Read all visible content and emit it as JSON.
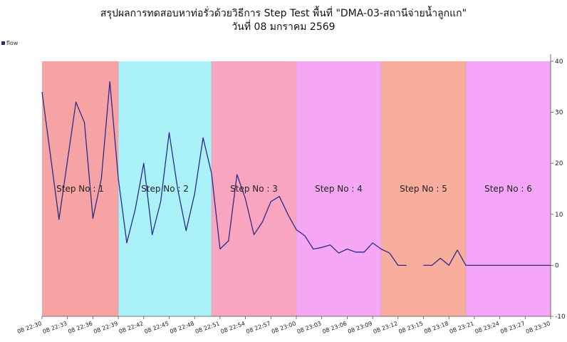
{
  "chart_data": {
    "type": "line",
    "title": "สรุปผลการทดสอบหาท่อรั่วด้วยวิธีการ Step Test พื้นที่ \"DMA-03-สถานีจ่ายน้ำลูกแก\"",
    "subtitle": "วันที่ 08 มกราคม 2569",
    "ylim": [
      -10,
      40
    ],
    "yticks": [
      -10,
      0,
      10,
      20,
      30,
      40
    ],
    "y_axis_side": "right",
    "x_start_minute": 0,
    "x_end_minute": 60,
    "xticks": [
      {
        "minute": 0,
        "label": "08 22:30"
      },
      {
        "minute": 3,
        "label": "08 22:33"
      },
      {
        "minute": 6,
        "label": "08 22:36"
      },
      {
        "minute": 9,
        "label": "08 22:39"
      },
      {
        "minute": 12,
        "label": "08 22:42"
      },
      {
        "minute": 15,
        "label": "08 22:45"
      },
      {
        "minute": 18,
        "label": "08 22:48"
      },
      {
        "minute": 21,
        "label": "08 22:51"
      },
      {
        "minute": 24,
        "label": "08 22:54"
      },
      {
        "minute": 27,
        "label": "08 22:57"
      },
      {
        "minute": 30,
        "label": "08 23:00"
      },
      {
        "minute": 33,
        "label": "08 23:03"
      },
      {
        "minute": 36,
        "label": "08 23:06"
      },
      {
        "minute": 39,
        "label": "08 23:09"
      },
      {
        "minute": 42,
        "label": "08 23:12"
      },
      {
        "minute": 45,
        "label": "08 23:15"
      },
      {
        "minute": 48,
        "label": "08 23:18"
      },
      {
        "minute": 51,
        "label": "08 23:21"
      },
      {
        "minute": 54,
        "label": "08 23:24"
      },
      {
        "minute": 57,
        "label": "08 23:27"
      },
      {
        "minute": 60,
        "label": "08 23:30"
      }
    ],
    "steps": [
      {
        "label": "Step No : 1",
        "start": 0,
        "end": 9,
        "color": "#f8a3a3"
      },
      {
        "label": "Step No : 2",
        "start": 9,
        "end": 20,
        "color": "#aaf1f8"
      },
      {
        "label": "Step No : 3",
        "start": 20,
        "end": 30,
        "color": "#f9a5c0"
      },
      {
        "label": "Step No : 4",
        "start": 30,
        "end": 40,
        "color": "#f5a6f5"
      },
      {
        "label": "Step No : 5",
        "start": 40,
        "end": 50,
        "color": "#f9ad9d"
      },
      {
        "label": "Step No : 6",
        "start": 50,
        "end": 60,
        "color": "#f5a6f8"
      }
    ],
    "series": [
      {
        "name": "flow",
        "color": "#2b2b8c",
        "points": [
          [
            0,
            34
          ],
          [
            2,
            9
          ],
          [
            4,
            32
          ],
          [
            5,
            28
          ],
          [
            6,
            9.2
          ],
          [
            7,
            17
          ],
          [
            8,
            36
          ],
          [
            9,
            17
          ],
          [
            10,
            4.4
          ],
          [
            11,
            11
          ],
          [
            12,
            20
          ],
          [
            13,
            6
          ],
          [
            14,
            12.5
          ],
          [
            15,
            26
          ],
          [
            16,
            15
          ],
          [
            17,
            6.8
          ],
          [
            18,
            14
          ],
          [
            19,
            25
          ],
          [
            20,
            18
          ],
          [
            21,
            3.2
          ],
          [
            22,
            4.8
          ],
          [
            23,
            17.8
          ],
          [
            24,
            13
          ],
          [
            25,
            6
          ],
          [
            26,
            8.5
          ],
          [
            27,
            12.5
          ],
          [
            28,
            13.5
          ],
          [
            29,
            10
          ],
          [
            30,
            7
          ],
          [
            31,
            5.8
          ],
          [
            32,
            3.2
          ],
          [
            33,
            3.5
          ],
          [
            34,
            4
          ],
          [
            35,
            2.4
          ],
          [
            36,
            3.2
          ],
          [
            37,
            2.6
          ],
          [
            38,
            2.6
          ],
          [
            39,
            4.4
          ],
          [
            40,
            3.2
          ],
          [
            41,
            2.4
          ],
          [
            42,
            0
          ],
          [
            43,
            0
          ],
          null,
          [
            45,
            0
          ],
          [
            46,
            0
          ],
          [
            47,
            1.4
          ],
          [
            48,
            0
          ],
          [
            49,
            3
          ],
          [
            50,
            0
          ],
          [
            51,
            0
          ],
          [
            52,
            0
          ],
          [
            53,
            0
          ],
          [
            54,
            0
          ],
          [
            55,
            0
          ],
          [
            56,
            0
          ],
          [
            57,
            0
          ],
          [
            58,
            0
          ],
          [
            59,
            0
          ],
          [
            60,
            0
          ]
        ]
      }
    ],
    "legend": {
      "placement": "top-left"
    }
  }
}
